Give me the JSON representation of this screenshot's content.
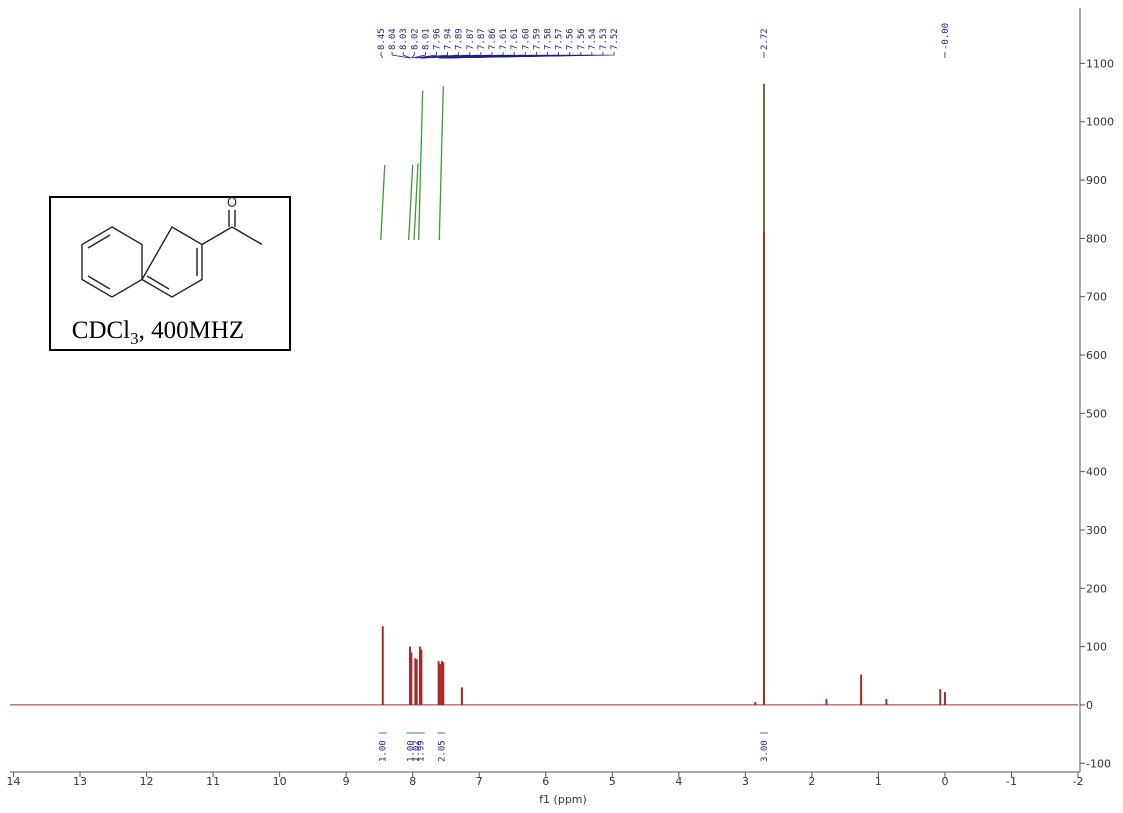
{
  "chart_data": {
    "type": "nmr",
    "x_label": "f1 (ppm)",
    "inset": {
      "text": "CDCl",
      "sub": "3",
      "rest": ", 400MHZ",
      "atom": "O"
    },
    "xlim": [
      14,
      -2
    ],
    "xticks": [
      14,
      13,
      12,
      11,
      10,
      9,
      8,
      7,
      6,
      5,
      4,
      3,
      2,
      1,
      0,
      -1,
      -2
    ],
    "ylim": [
      -115,
      1195
    ],
    "yticks": [
      -100,
      0,
      100,
      200,
      300,
      400,
      500,
      600,
      700,
      800,
      900,
      1000,
      1100
    ],
    "series": [
      {
        "color": "#a52a2a",
        "x": [
          8.45,
          8.04,
          8.02,
          7.96,
          7.94,
          7.89,
          7.87,
          7.61,
          7.59,
          7.56,
          7.54,
          7.26,
          2.85,
          2.72,
          1.78,
          1.26,
          0.88,
          0.07,
          0.0
        ],
        "values": [
          135,
          100,
          90,
          80,
          78,
          100,
          95,
          75,
          70,
          75,
          73,
          30,
          5,
          1065,
          10,
          52,
          10,
          27,
          22
        ]
      }
    ],
    "peak_labels": [
      {
        "value": 8.45,
        "label": "8.45"
      },
      {
        "value": 8.04,
        "label": "8.04"
      },
      {
        "value": 8.03,
        "label": "8.03"
      },
      {
        "value": 8.02,
        "label": "8.02"
      },
      {
        "value": 8.01,
        "label": "8.01"
      },
      {
        "value": 7.96,
        "label": "7.96"
      },
      {
        "value": 7.94,
        "label": "7.94"
      },
      {
        "value": 7.89,
        "label": "7.89"
      },
      {
        "value": 7.87,
        "label": "7.87"
      },
      {
        "value": 7.87,
        "label": "7.87"
      },
      {
        "value": 7.86,
        "label": "7.86"
      },
      {
        "value": 7.61,
        "label": "7.61"
      },
      {
        "value": 7.61,
        "label": "7.61"
      },
      {
        "value": 7.6,
        "label": "7.60"
      },
      {
        "value": 7.59,
        "label": "7.59"
      },
      {
        "value": 7.58,
        "label": "7.58"
      },
      {
        "value": 7.57,
        "label": "7.57"
      },
      {
        "value": 7.56,
        "label": "7.56"
      },
      {
        "value": 7.56,
        "label": "7.56"
      },
      {
        "value": 7.54,
        "label": "7.54"
      },
      {
        "value": 7.53,
        "label": "7.53"
      },
      {
        "value": 7.52,
        "label": "7.52"
      },
      {
        "value": 2.72,
        "label": "2.72"
      },
      {
        "value": 0,
        "label": "-0.00"
      }
    ],
    "integrals": [
      {
        "x": 8.45,
        "value": 1,
        "label": "1.00"
      },
      {
        "x": 8.03,
        "value": 1,
        "label": "1.00"
      },
      {
        "x": 7.95,
        "value": 1.02,
        "label": "1.02"
      },
      {
        "x": 7.88,
        "value": 1.99,
        "label": "1.99"
      },
      {
        "x": 7.57,
        "value": 2.05,
        "label": "2.05"
      },
      {
        "x": 2.72,
        "value": 3,
        "label": "3.00"
      }
    ]
  }
}
